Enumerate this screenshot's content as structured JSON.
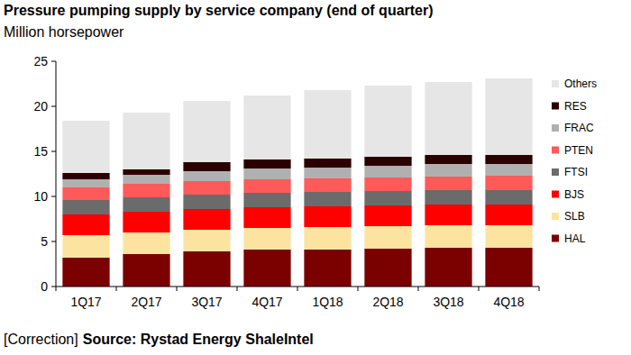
{
  "chart_data": {
    "type": "bar",
    "stacked": true,
    "grid": false,
    "legend": "right",
    "title": "Pressure pumping supply by service company (end of quarter)",
    "subtitle": "Million horsepower",
    "note": "[Correction]",
    "source": "Source: Rystad Energy ShaleIntel",
    "categories": [
      "1Q17",
      "2Q17",
      "3Q17",
      "4Q17",
      "1Q18",
      "2Q18",
      "3Q18",
      "4Q18"
    ],
    "ylim": [
      0,
      25
    ],
    "yticks": [
      0,
      5,
      10,
      15,
      20,
      25
    ],
    "series": [
      {
        "name": "HAL",
        "color": "#7b0000",
        "values": [
          3.2,
          3.6,
          3.9,
          4.1,
          4.1,
          4.2,
          4.3,
          4.3
        ]
      },
      {
        "name": "SLB",
        "color": "#fce4a0",
        "values": [
          2.5,
          2.4,
          2.4,
          2.4,
          2.5,
          2.5,
          2.5,
          2.5
        ]
      },
      {
        "name": "BJS",
        "color": "#ff0000",
        "values": [
          2.3,
          2.3,
          2.3,
          2.3,
          2.3,
          2.3,
          2.3,
          2.3
        ]
      },
      {
        "name": "FTSI",
        "color": "#6b6b6b",
        "values": [
          1.6,
          1.6,
          1.6,
          1.6,
          1.6,
          1.6,
          1.6,
          1.6
        ]
      },
      {
        "name": "PTEN",
        "color": "#ff5a5a",
        "values": [
          1.4,
          1.5,
          1.5,
          1.5,
          1.5,
          1.5,
          1.5,
          1.6
        ]
      },
      {
        "name": "FRAC",
        "color": "#b0b0b0",
        "values": [
          0.9,
          1.0,
          1.1,
          1.2,
          1.2,
          1.3,
          1.4,
          1.3
        ]
      },
      {
        "name": "RES",
        "color": "#2a0000",
        "values": [
          0.7,
          0.6,
          1.0,
          1.0,
          1.0,
          1.0,
          1.0,
          1.0
        ]
      },
      {
        "name": "Others",
        "color": "#e6e6e6",
        "values": [
          5.8,
          6.3,
          6.8,
          7.1,
          7.6,
          7.9,
          8.1,
          8.5
        ]
      }
    ]
  }
}
